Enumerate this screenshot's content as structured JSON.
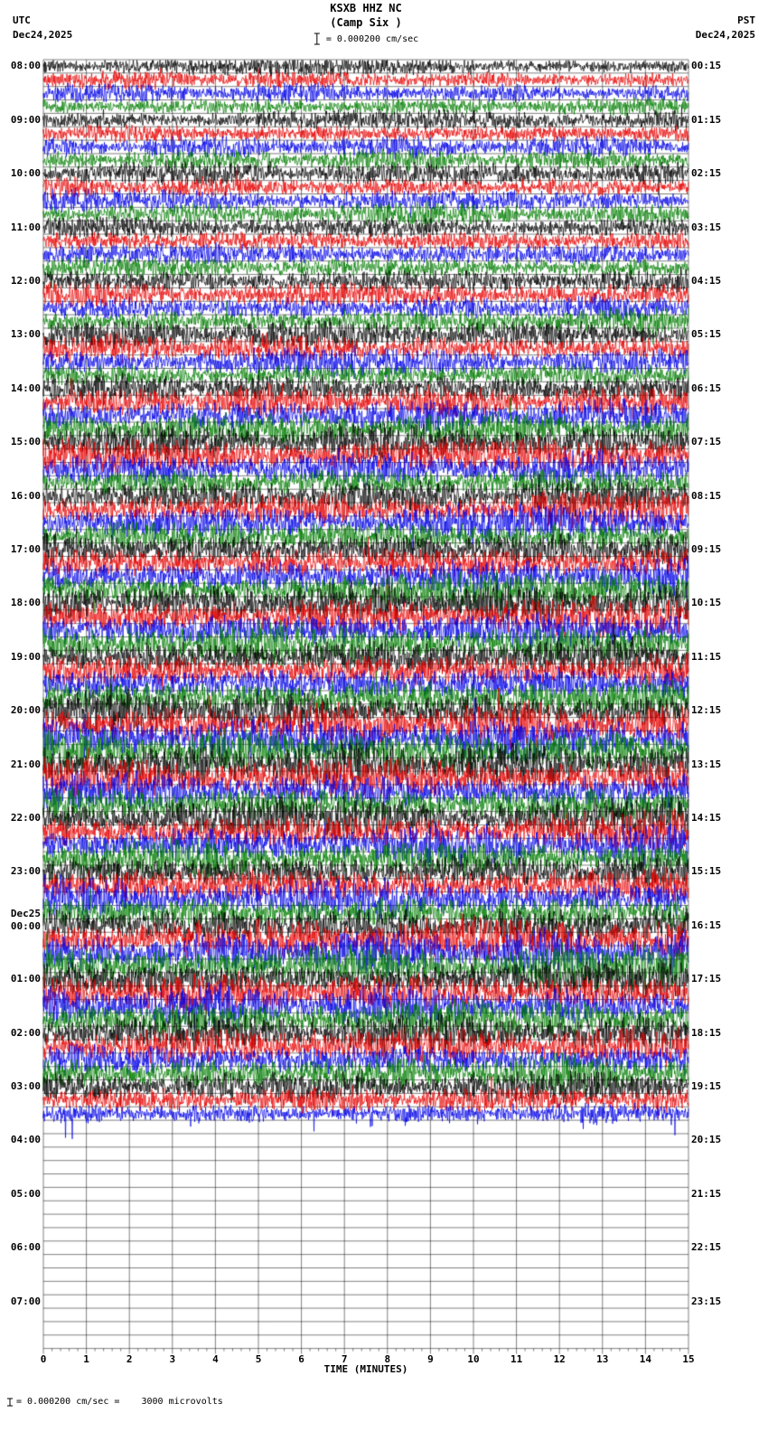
{
  "header": {
    "title": "KSXB HHZ NC",
    "subtitle": "(Camp Six )",
    "left_tz": "UTC",
    "left_date": "Dec24,2025",
    "right_tz": "PST",
    "right_date": "Dec24,2025",
    "scale_label": "= 0.000200 cm/sec"
  },
  "footer": {
    "axis_label": "TIME (MINUTES)",
    "note": "= 0.000200 cm/sec =    3000 microvolts"
  },
  "chart_data": {
    "type": "line",
    "subtype": "helicorder-seismogram",
    "station": "KSXB",
    "channel": "HHZ",
    "network": "NC",
    "site_name": "Camp Six",
    "title": "KSXB HHZ NC (Camp Six )",
    "xlabel": "TIME (MINUTES)",
    "xlim": [
      0,
      15
    ],
    "x_ticks": [
      0,
      1,
      2,
      3,
      4,
      5,
      6,
      7,
      8,
      9,
      10,
      11,
      12,
      13,
      14,
      15
    ],
    "minutes_per_line": 15,
    "traces_per_hour": 4,
    "trace_colors": [
      "#000000",
      "#e60000",
      "#0000e6",
      "#007d00"
    ],
    "grid": true,
    "scale_cm_per_sec": "0.000200",
    "scale_microvolts": "3000",
    "rows": [
      {
        "utc": "08:00",
        "pst": "00:15",
        "active": true,
        "amplitude": 1.05
      },
      {
        "utc": "09:00",
        "pst": "01:15",
        "active": true,
        "amplitude": 1.15
      },
      {
        "utc": "10:00",
        "pst": "02:15",
        "active": true,
        "amplitude": 1.25
      },
      {
        "utc": "11:00",
        "pst": "03:15",
        "active": true,
        "amplitude": 1.35
      },
      {
        "utc": "12:00",
        "pst": "04:15",
        "active": true,
        "amplitude": 1.5
      },
      {
        "utc": "13:00",
        "pst": "05:15",
        "active": true,
        "amplitude": 1.6
      },
      {
        "utc": "14:00",
        "pst": "06:15",
        "active": true,
        "amplitude": 1.8
      },
      {
        "utc": "15:00",
        "pst": "07:15",
        "active": true,
        "amplitude": 1.95
      },
      {
        "utc": "16:00",
        "pst": "08:15",
        "active": true,
        "amplitude": 2.05
      },
      {
        "utc": "17:00",
        "pst": "09:15",
        "active": true,
        "amplitude": 2.15
      },
      {
        "utc": "18:00",
        "pst": "10:15",
        "active": true,
        "amplitude": 2.2
      },
      {
        "utc": "19:00",
        "pst": "11:15",
        "active": true,
        "amplitude": 2.25
      },
      {
        "utc": "20:00",
        "pst": "12:15",
        "active": true,
        "amplitude": 2.3
      },
      {
        "utc": "21:00",
        "pst": "13:15",
        "active": true,
        "amplitude": 2.3
      },
      {
        "utc": "22:00",
        "pst": "14:15",
        "active": true,
        "amplitude": 2.25
      },
      {
        "utc": "23:00",
        "pst": "15:15",
        "active": true,
        "amplitude": 2.3
      },
      {
        "utc": "00:00",
        "pst": "16:15",
        "active": true,
        "amplitude": 2.35,
        "date_label": "Dec25"
      },
      {
        "utc": "01:00",
        "pst": "17:15",
        "active": true,
        "amplitude": 2.3
      },
      {
        "utc": "02:00",
        "pst": "18:15",
        "active": true,
        "amplitude": 2.1
      },
      {
        "utc": "03:00",
        "pst": "19:15",
        "active": true,
        "amplitude": 1.7,
        "active_traces": 3
      },
      {
        "utc": "04:00",
        "pst": "20:15",
        "active": false,
        "amplitude": 0
      },
      {
        "utc": "05:00",
        "pst": "21:15",
        "active": false,
        "amplitude": 0
      },
      {
        "utc": "06:00",
        "pst": "22:15",
        "active": false,
        "amplitude": 0
      },
      {
        "utc": "07:00",
        "pst": "23:15",
        "active": false,
        "amplitude": 0
      }
    ]
  }
}
